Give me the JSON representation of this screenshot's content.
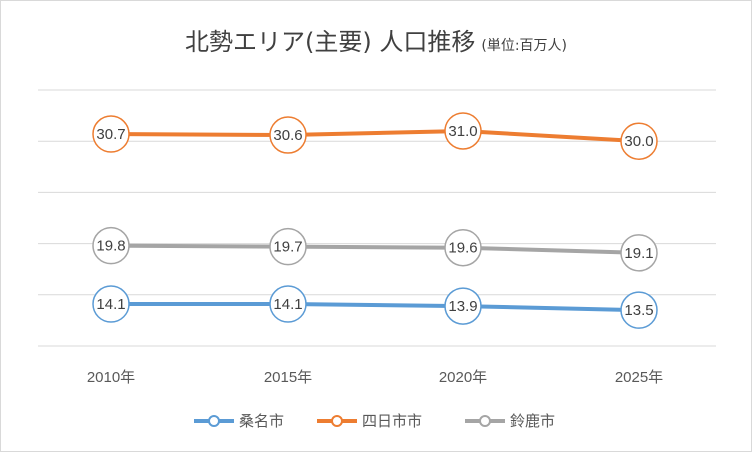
{
  "chart_data": {
    "type": "line",
    "title": "北勢エリア(主要) 人口推移",
    "subtitle": "(単位:百万人)",
    "categories": [
      "2010年",
      "2015年",
      "2020年",
      "2025年"
    ],
    "series": [
      {
        "name": "桑名市",
        "values": [
          14.1,
          14.1,
          13.9,
          13.5
        ],
        "labels": [
          "14.1",
          "14.1",
          "13.9",
          "13.5"
        ],
        "color": "#5b9bd5"
      },
      {
        "name": "四日市市",
        "values": [
          30.7,
          30.6,
          31.0,
          30.0
        ],
        "labels": [
          "30.7",
          "30.6",
          "31.0",
          "30.0"
        ],
        "color": "#ed7d31"
      },
      {
        "name": "鈴鹿市",
        "values": [
          19.8,
          19.7,
          19.6,
          19.1
        ],
        "labels": [
          "19.8",
          "19.7",
          "19.6",
          "19.1"
        ],
        "color": "#a5a5a5"
      }
    ],
    "ylim": [
      10,
      35
    ],
    "y_gridlines": [
      10,
      15,
      20,
      25,
      30,
      35
    ],
    "grid": true,
    "legend": "bottom",
    "gridline_color": "#d9d9d9"
  }
}
